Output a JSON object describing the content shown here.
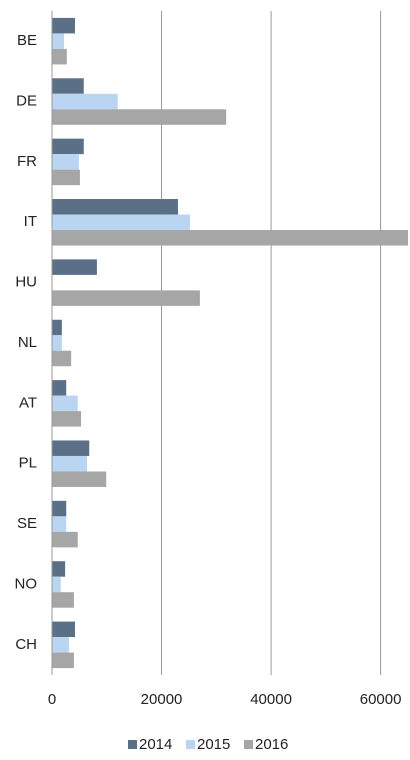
{
  "chart_data": {
    "type": "hbar",
    "categories": [
      "BE",
      "DE",
      "FR",
      "IT",
      "HU",
      "NL",
      "AT",
      "PL",
      "SE",
      "NO",
      "CH"
    ],
    "series": [
      {
        "name": "2014",
        "color": "#5b6f86",
        "values": [
          4200,
          5800,
          5800,
          23000,
          8200,
          1800,
          2600,
          6800,
          2600,
          2400,
          4200
        ]
      },
      {
        "name": "2015",
        "color": "#b9d5f1",
        "values": [
          2200,
          12000,
          4900,
          25200,
          0,
          1800,
          4700,
          6400,
          2600,
          1600,
          3100
        ]
      },
      {
        "name": "2016",
        "color": "#a6a6a6",
        "values": [
          2700,
          31800,
          5100,
          65000,
          27000,
          3500,
          5300,
          9900,
          4700,
          4000,
          4000
        ]
      }
    ],
    "xlim": [
      0,
      65000
    ],
    "xticks": [
      0,
      20000,
      40000,
      60000
    ],
    "grid": true,
    "legend": "bottom"
  }
}
